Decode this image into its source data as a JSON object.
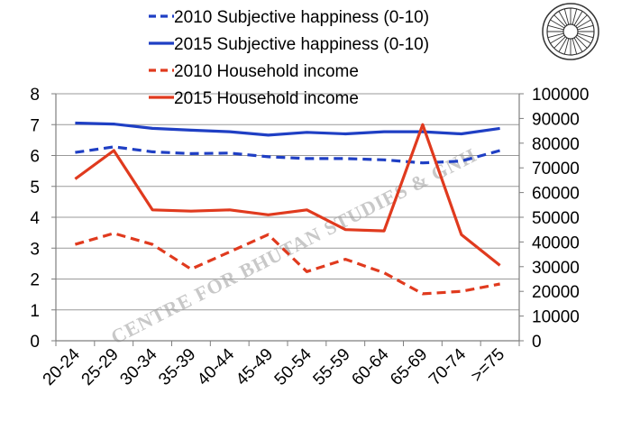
{
  "chart_data": {
    "type": "line",
    "title": "",
    "xlabel": "",
    "ylabel": "",
    "ylabel_right": "",
    "categories": [
      "20-24",
      "25-29",
      "30-34",
      "35-39",
      "40-44",
      "45-49",
      "50-54",
      "55-59",
      "60-64",
      "65-69",
      "70-74",
      ">=75"
    ],
    "y_left_ticks": [
      "0",
      "1",
      "2",
      "3",
      "4",
      "5",
      "6",
      "7",
      "8"
    ],
    "y_right_ticks": [
      "0",
      "10000",
      "20000",
      "30000",
      "40000",
      "50000",
      "60000",
      "70000",
      "80000",
      "90000",
      "100000"
    ],
    "ylim_left": [
      0,
      8
    ],
    "ylim_right": [
      0,
      100000
    ],
    "grid": true,
    "legend_position": "top",
    "series": [
      {
        "name": "2010 Subjective happiness (0-10)",
        "axis": "left",
        "style": "dashed",
        "color": "#1f3fc4",
        "values": [
          6.1,
          6.28,
          6.12,
          6.06,
          6.08,
          5.96,
          5.9,
          5.9,
          5.86,
          5.76,
          5.82,
          6.16
        ]
      },
      {
        "name": "2015 Subjective happiness (0-10)",
        "axis": "left",
        "style": "solid",
        "color": "#1f3fc4",
        "values": [
          7.05,
          7.02,
          6.88,
          6.82,
          6.77,
          6.66,
          6.75,
          6.7,
          6.77,
          6.77,
          6.7,
          6.88
        ]
      },
      {
        "name": "2010 Household income",
        "axis": "right",
        "style": "dashed",
        "color": "#e03a1e",
        "values": [
          39000,
          43500,
          39000,
          29000,
          36000,
          43000,
          28000,
          33000,
          27500,
          19000,
          20000,
          23000
        ]
      },
      {
        "name": "2015 Household income",
        "axis": "right",
        "style": "solid",
        "color": "#e03a1e",
        "values": [
          65500,
          77000,
          53000,
          52500,
          53000,
          51000,
          53000,
          45000,
          44500,
          87500,
          43000,
          30500
        ]
      }
    ]
  },
  "watermark": {
    "text": "CENTRE FOR BHUTAN STUDIES & GNH",
    "logo_icon": "dharma-wheel-icon"
  }
}
